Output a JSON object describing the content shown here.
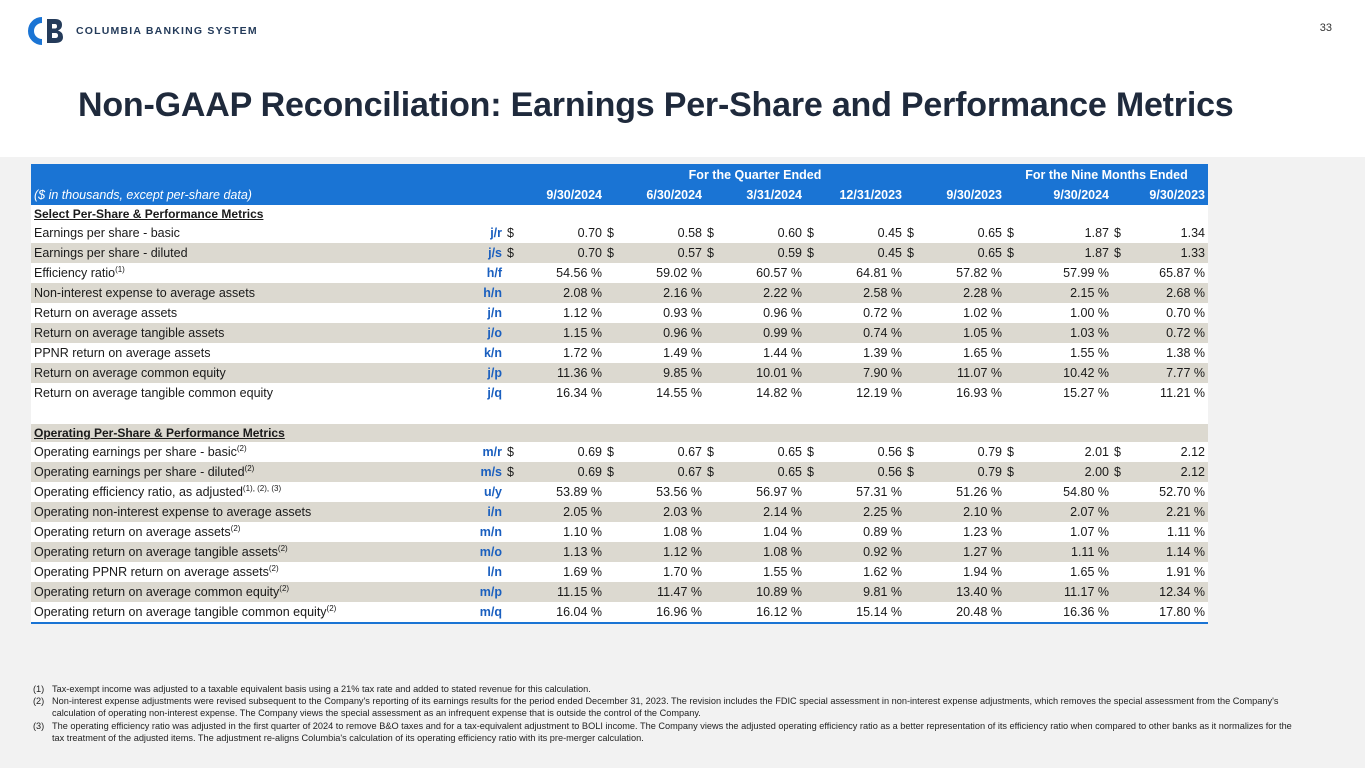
{
  "brand": {
    "name": "COLUMBIA BANKING SYSTEM",
    "color": "#1a74d4",
    "logo_letters": "CB"
  },
  "page_number": "33",
  "title": "Non-GAAP Reconciliation: Earnings Per-Share and Performance Metrics",
  "table": {
    "group_quarter": "For the Quarter Ended",
    "group_nine": "For the Nine Months Ended",
    "units": "($ in thousands, except per-share data)",
    "columns": [
      "9/30/2024",
      "6/30/2024",
      "3/31/2024",
      "12/31/2023",
      "9/30/2023",
      "9/30/2024",
      "9/30/2023"
    ],
    "section1": "Select Per-Share & Performance Metrics",
    "section2": "Operating Per-Share & Performance Metrics",
    "rows1": [
      {
        "label": "Earnings per share - basic",
        "sup": "",
        "code": "j/r",
        "dollar": "$",
        "values": [
          "0.70",
          "0.58",
          "0.60",
          "0.45",
          "0.65",
          "1.87",
          "1.34"
        ]
      },
      {
        "label": "Earnings per share - diluted",
        "sup": "",
        "code": "j/s",
        "dollar": "$",
        "values": [
          "0.70",
          "0.57",
          "0.59",
          "0.45",
          "0.65",
          "1.87",
          "1.33"
        ]
      },
      {
        "label": "Efficiency ratio",
        "sup": "(1)",
        "code": "h/f",
        "dollar": "",
        "values": [
          "54.56 %",
          "59.02 %",
          "60.57 %",
          "64.81 %",
          "57.82 %",
          "57.99 %",
          "65.87 %"
        ]
      },
      {
        "label": "Non-interest expense to average assets",
        "sup": "",
        "code": "h/n",
        "dollar": "",
        "values": [
          "2.08 %",
          "2.16 %",
          "2.22 %",
          "2.58 %",
          "2.28 %",
          "2.15 %",
          "2.68 %"
        ]
      },
      {
        "label": "Return on average assets",
        "sup": "",
        "code": "j/n",
        "dollar": "",
        "values": [
          "1.12 %",
          "0.93 %",
          "0.96 %",
          "0.72 %",
          "1.02 %",
          "1.00 %",
          "0.70 %"
        ]
      },
      {
        "label": "Return on average tangible assets",
        "sup": "",
        "code": "j/o",
        "dollar": "",
        "values": [
          "1.15 %",
          "0.96 %",
          "0.99 %",
          "0.74 %",
          "1.05 %",
          "1.03 %",
          "0.72 %"
        ]
      },
      {
        "label": "PPNR return on average assets",
        "sup": "",
        "code": "k/n",
        "dollar": "",
        "values": [
          "1.72 %",
          "1.49 %",
          "1.44 %",
          "1.39 %",
          "1.65 %",
          "1.55 %",
          "1.38 %"
        ]
      },
      {
        "label": "Return on average common equity",
        "sup": "",
        "code": "j/p",
        "dollar": "",
        "values": [
          "11.36 %",
          "9.85 %",
          "10.01 %",
          "7.90 %",
          "11.07 %",
          "10.42 %",
          "7.77 %"
        ]
      },
      {
        "label": "Return on average tangible common equity",
        "sup": "",
        "code": "j/q",
        "dollar": "",
        "values": [
          "16.34 %",
          "14.55 %",
          "14.82 %",
          "12.19 %",
          "16.93 %",
          "15.27 %",
          "11.21 %"
        ]
      }
    ],
    "rows2": [
      {
        "label": "Operating earnings per share - basic",
        "sup": "(2)",
        "code": "m/r",
        "dollar": "$",
        "values": [
          "0.69",
          "0.67",
          "0.65",
          "0.56",
          "0.79",
          "2.01",
          "2.12"
        ]
      },
      {
        "label": "Operating earnings per share - diluted",
        "sup": "(2)",
        "code": "m/s",
        "dollar": "$",
        "values": [
          "0.69",
          "0.67",
          "0.65",
          "0.56",
          "0.79",
          "2.00",
          "2.12"
        ]
      },
      {
        "label": "Operating efficiency ratio, as adjusted",
        "sup": "(1), (2), (3)",
        "code": "u/y",
        "dollar": "",
        "values": [
          "53.89 %",
          "53.56 %",
          "56.97 %",
          "57.31 %",
          "51.26 %",
          "54.80 %",
          "52.70 %"
        ]
      },
      {
        "label": "Operating non-interest expense to average assets",
        "sup": "",
        "code": "i/n",
        "dollar": "",
        "values": [
          "2.05 %",
          "2.03 %",
          "2.14 %",
          "2.25 %",
          "2.10 %",
          "2.07 %",
          "2.21 %"
        ]
      },
      {
        "label": "Operating return on average assets",
        "sup": "(2)",
        "code": "m/n",
        "dollar": "",
        "values": [
          "1.10 %",
          "1.08 %",
          "1.04 %",
          "0.89 %",
          "1.23 %",
          "1.07 %",
          "1.11 %"
        ]
      },
      {
        "label": "Operating return on average tangible assets",
        "sup": "(2)",
        "code": "m/o",
        "dollar": "",
        "values": [
          "1.13 %",
          "1.12 %",
          "1.08 %",
          "0.92 %",
          "1.27 %",
          "1.11 %",
          "1.14 %"
        ]
      },
      {
        "label": "Operating PPNR return on average assets",
        "sup": "(2)",
        "code": "l/n",
        "dollar": "",
        "values": [
          "1.69 %",
          "1.70 %",
          "1.55 %",
          "1.62 %",
          "1.94 %",
          "1.65 %",
          "1.91 %"
        ]
      },
      {
        "label": "Operating return on average common equity",
        "sup": "(2)",
        "code": "m/p",
        "dollar": "",
        "values": [
          "11.15 %",
          "11.47 %",
          "10.89 %",
          "9.81 %",
          "13.40 %",
          "11.17 %",
          "12.34 %"
        ]
      },
      {
        "label": "Operating return on average tangible common equity",
        "sup": "(2)",
        "code": "m/q",
        "dollar": "",
        "values": [
          "16.04 %",
          "16.96 %",
          "16.12 %",
          "15.14 %",
          "20.48 %",
          "16.36 %",
          "17.80 %"
        ]
      }
    ]
  },
  "footnotes": [
    {
      "num": "(1)",
      "text": "Tax-exempt income was adjusted to a taxable equivalent basis using a 21% tax rate and added to stated revenue for this calculation."
    },
    {
      "num": "(2)",
      "text": "Non-interest expense adjustments were revised subsequent to the Company's reporting of its earnings results for the period ended December 31, 2023. The revision includes the FDIC special assessment in non-interest expense adjustments, which removes the special assessment from the Company's calculation of operating non-interest expense. The Company views the special assessment as an infrequent expense that is outside the control of the Company."
    },
    {
      "num": "(3)",
      "text": "The operating efficiency ratio was adjusted in the first quarter of 2024 to remove B&O taxes and for a tax-equivalent adjustment to BOLI income. The Company views the adjusted operating efficiency ratio as a better representation of its efficiency ratio when compared to other banks as it normalizes for the tax treatment of the adjusted items. The adjustment re-aligns Columbia's calculation of its operating efficiency ratio with its pre-merger calculation."
    }
  ]
}
